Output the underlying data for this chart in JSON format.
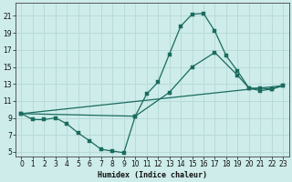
{
  "xlabel": "Humidex (Indice chaleur)",
  "background_color": "#cdecea",
  "grid_color": "#b8dbd8",
  "line_color": "#1a6b5e",
  "xlim": [
    -0.5,
    23.5
  ],
  "ylim": [
    4.5,
    22.5
  ],
  "xticks": [
    0,
    1,
    2,
    3,
    4,
    5,
    6,
    7,
    8,
    9,
    10,
    11,
    12,
    13,
    14,
    15,
    16,
    17,
    18,
    19,
    20,
    21,
    22,
    23
  ],
  "yticks": [
    5,
    7,
    9,
    11,
    13,
    15,
    17,
    19,
    21
  ],
  "curve1_x": [
    0,
    1,
    2,
    3,
    4,
    5,
    6,
    7,
    8,
    9,
    10,
    11,
    12,
    13,
    14,
    15,
    16,
    17,
    18,
    19,
    20,
    21,
    22,
    23
  ],
  "curve1_y": [
    9.5,
    8.8,
    8.8,
    9.0,
    8.3,
    7.2,
    6.3,
    5.3,
    5.1,
    4.9,
    9.2,
    11.8,
    13.2,
    16.5,
    19.8,
    21.2,
    21.3,
    19.2,
    16.3,
    14.5,
    12.5,
    12.2,
    12.4,
    12.8
  ],
  "curve2_x": [
    0,
    10,
    13,
    15,
    17,
    19,
    20,
    21,
    22,
    23
  ],
  "curve2_y": [
    9.5,
    9.2,
    12.0,
    15.0,
    16.7,
    14.0,
    12.5,
    12.5,
    12.4,
    12.8
  ],
  "curve3_x": [
    0,
    23
  ],
  "curve3_y": [
    9.5,
    12.8
  ]
}
